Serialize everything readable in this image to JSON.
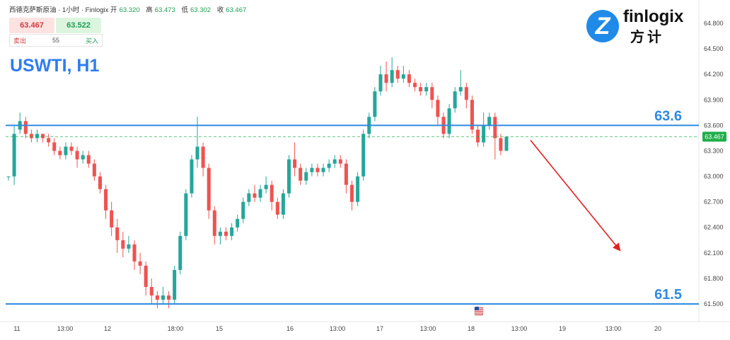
{
  "header": {
    "title": "西德克萨斯原油 · 1小时 · Finlogix",
    "open_label": "开",
    "open": "63.320",
    "high_label": "高",
    "high": "63.473",
    "low_label": "低",
    "low": "63.302",
    "close_label": "收",
    "close": "63.467"
  },
  "trade_panel": {
    "sell_price": "63.467",
    "buy_price": "63.522",
    "sell_label": "卖出",
    "buy_label": "买入",
    "spread": "55"
  },
  "symbol_label": "USWTI, H1",
  "logo": {
    "brand": "finlogix",
    "chinese": "方计",
    "icon": "finlogix-z-icon"
  },
  "colors": {
    "up": "#26a69a",
    "down": "#ef5350",
    "level_line": "#2f8ae0",
    "arrow": "#e02020",
    "price_tag": "#1fae4a"
  },
  "chart_data": {
    "type": "candlestick",
    "y_ticks": [
      "64.800",
      "64.500",
      "64.200",
      "63.900",
      "63.600",
      "63.300",
      "63.000",
      "62.700",
      "62.400",
      "62.100",
      "61.800",
      "61.500"
    ],
    "ylim": [
      61.4,
      64.88
    ],
    "x_ticks": [
      "11",
      "13:00",
      "12",
      "18:00",
      "15",
      "16",
      "13:00",
      "17",
      "13:00",
      "18",
      "13:00",
      "19",
      "13:00",
      "20"
    ],
    "current_price": "63.467",
    "levels": [
      {
        "value": 63.6,
        "label": "63.6"
      },
      {
        "value": 61.5,
        "label": "61.5"
      }
    ],
    "forecast_arrow": {
      "from": 63.4,
      "to": 62.2,
      "direction": "down"
    },
    "event_icon": "us-flag-icon",
    "candles": [
      [
        63.0,
        63.0,
        63.0,
        62.95
      ],
      [
        63.0,
        63.5,
        63.6,
        62.9
      ],
      [
        63.55,
        63.65,
        63.75,
        63.5
      ],
      [
        63.65,
        63.5,
        63.7,
        63.45
      ],
      [
        63.5,
        63.45,
        63.55,
        63.4
      ],
      [
        63.45,
        63.5,
        63.55,
        63.4
      ],
      [
        63.5,
        63.45,
        63.5,
        63.4
      ],
      [
        63.45,
        63.4,
        63.5,
        63.35
      ],
      [
        63.4,
        63.3,
        63.45,
        63.25
      ],
      [
        63.3,
        63.25,
        63.35,
        63.2
      ],
      [
        63.25,
        63.35,
        63.4,
        63.2
      ],
      [
        63.35,
        63.3,
        63.4,
        63.25
      ],
      [
        63.3,
        63.2,
        63.35,
        63.1
      ],
      [
        63.2,
        63.25,
        63.3,
        63.15
      ],
      [
        63.25,
        63.15,
        63.3,
        63.1
      ],
      [
        63.15,
        63.0,
        63.2,
        62.95
      ],
      [
        63.0,
        62.85,
        63.05,
        62.8
      ],
      [
        62.85,
        62.6,
        62.9,
        62.5
      ],
      [
        62.6,
        62.4,
        62.7,
        62.3
      ],
      [
        62.4,
        62.25,
        62.5,
        62.1
      ],
      [
        62.25,
        62.15,
        62.35,
        62.05
      ],
      [
        62.15,
        62.2,
        62.3,
        62.1
      ],
      [
        62.2,
        62.0,
        62.25,
        61.9
      ],
      [
        62.0,
        61.95,
        62.1,
        61.85
      ],
      [
        61.95,
        61.7,
        62.0,
        61.6
      ],
      [
        61.7,
        61.6,
        61.8,
        61.5
      ],
      [
        61.6,
        61.55,
        61.65,
        61.45
      ],
      [
        61.55,
        61.6,
        61.7,
        61.5
      ],
      [
        61.6,
        61.55,
        61.65,
        61.45
      ],
      [
        61.55,
        61.9,
        61.95,
        61.5
      ],
      [
        61.9,
        62.3,
        62.35,
        61.85
      ],
      [
        62.3,
        62.8,
        62.85,
        62.25
      ],
      [
        62.8,
        63.2,
        63.25,
        62.75
      ],
      [
        63.2,
        63.35,
        63.7,
        63.1
      ],
      [
        63.35,
        63.1,
        63.4,
        63.0
      ],
      [
        63.1,
        62.6,
        63.15,
        62.5
      ],
      [
        62.6,
        62.3,
        62.65,
        62.2
      ],
      [
        62.3,
        62.35,
        62.4,
        62.2
      ],
      [
        62.35,
        62.3,
        62.4,
        62.25
      ],
      [
        62.3,
        62.4,
        62.45,
        62.25
      ],
      [
        62.4,
        62.5,
        62.55,
        62.35
      ],
      [
        62.5,
        62.7,
        62.75,
        62.45
      ],
      [
        62.7,
        62.8,
        62.85,
        62.65
      ],
      [
        62.8,
        62.75,
        62.9,
        62.7
      ],
      [
        62.75,
        62.85,
        62.9,
        62.7
      ],
      [
        62.85,
        62.9,
        63.0,
        62.8
      ],
      [
        62.9,
        62.7,
        62.95,
        62.6
      ],
      [
        62.7,
        62.55,
        62.75,
        62.5
      ],
      [
        62.55,
        62.8,
        62.85,
        62.5
      ],
      [
        62.8,
        63.2,
        63.25,
        62.75
      ],
      [
        63.2,
        63.1,
        63.4,
        63.0
      ],
      [
        63.1,
        62.95,
        63.15,
        62.9
      ],
      [
        62.95,
        63.05,
        63.1,
        62.9
      ],
      [
        63.05,
        63.1,
        63.15,
        63.0
      ],
      [
        63.1,
        63.05,
        63.15,
        63.0
      ],
      [
        63.05,
        63.1,
        63.15,
        63.0
      ],
      [
        63.1,
        63.15,
        63.2,
        63.05
      ],
      [
        63.15,
        63.2,
        63.25,
        63.1
      ],
      [
        63.2,
        63.15,
        63.25,
        63.1
      ],
      [
        63.15,
        62.9,
        63.2,
        62.8
      ],
      [
        62.9,
        62.7,
        62.95,
        62.6
      ],
      [
        62.7,
        63.0,
        63.05,
        62.65
      ],
      [
        63.0,
        63.5,
        63.55,
        62.95
      ],
      [
        63.5,
        63.7,
        63.75,
        63.45
      ],
      [
        63.7,
        64.0,
        64.05,
        63.65
      ],
      [
        64.0,
        64.2,
        64.3,
        63.95
      ],
      [
        64.2,
        64.1,
        64.35,
        64.0
      ],
      [
        64.1,
        64.25,
        64.4,
        64.05
      ],
      [
        64.25,
        64.15,
        64.3,
        64.1
      ],
      [
        64.15,
        64.2,
        64.3,
        64.1
      ],
      [
        64.2,
        64.1,
        64.25,
        64.05
      ],
      [
        64.1,
        64.05,
        64.15,
        64.0
      ],
      [
        64.05,
        64.0,
        64.1,
        63.95
      ],
      [
        64.0,
        64.05,
        64.1,
        63.95
      ],
      [
        64.05,
        63.9,
        64.1,
        63.8
      ],
      [
        63.9,
        63.7,
        63.95,
        63.6
      ],
      [
        63.7,
        63.5,
        63.75,
        63.45
      ],
      [
        63.5,
        63.8,
        63.85,
        63.45
      ],
      [
        63.8,
        64.0,
        64.05,
        63.75
      ],
      [
        64.0,
        64.05,
        64.25,
        63.95
      ],
      [
        64.05,
        63.9,
        64.1,
        63.8
      ],
      [
        63.9,
        63.55,
        63.95,
        63.5
      ],
      [
        63.55,
        63.4,
        63.6,
        63.35
      ],
      [
        63.4,
        63.6,
        63.75,
        63.35
      ],
      [
        63.6,
        63.7,
        63.75,
        63.55
      ],
      [
        63.7,
        63.45,
        63.75,
        63.2
      ],
      [
        63.45,
        63.3,
        63.5,
        63.25
      ],
      [
        63.3,
        63.467,
        63.473,
        63.302
      ]
    ]
  }
}
